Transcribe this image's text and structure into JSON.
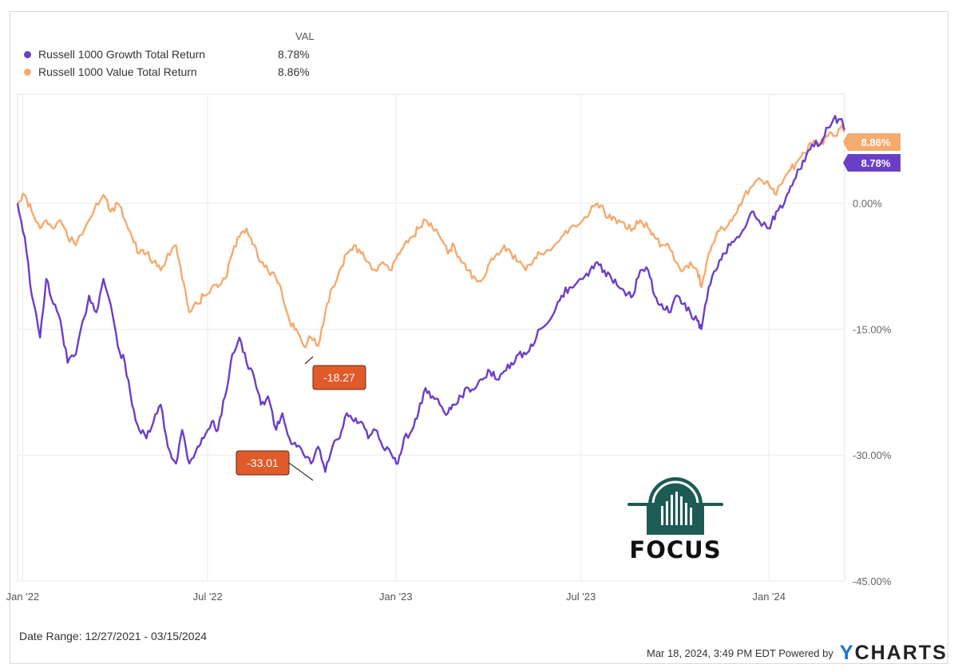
{
  "legend": {
    "header": "VAL",
    "items": [
      {
        "name": "Russell 1000 Growth Total Return",
        "value": "8.78%",
        "color": "#6a3fc8"
      },
      {
        "name": "Russell 1000 Value Total Return",
        "value": "8.86%",
        "color": "#f5aa6e"
      }
    ]
  },
  "chart_data": {
    "type": "line",
    "x_tick_labels": [
      "Jan '22",
      "Jul '22",
      "Jan '23",
      "Jul '23",
      "Jan '24"
    ],
    "y_tick_labels": [
      "0.00%",
      "-15.00%",
      "-30.00%",
      "-45.00%"
    ],
    "y_ticks": [
      0,
      -15,
      -30,
      -45
    ],
    "ylim": [
      -45,
      13
    ],
    "x_range": [
      "2021-12-27",
      "2024-03-15"
    ],
    "grid": true,
    "series": [
      {
        "name": "Russell 1000 Growth Total Return",
        "color": "#6a3fc8",
        "end_label": "8.78%",
        "x": [
          "2021-12-27",
          "2022-01-03",
          "2022-01-10",
          "2022-01-18",
          "2022-01-24",
          "2022-01-31",
          "2022-02-07",
          "2022-02-14",
          "2022-02-22",
          "2022-03-07",
          "2022-03-14",
          "2022-03-21",
          "2022-03-28",
          "2022-04-04",
          "2022-04-11",
          "2022-04-18",
          "2022-04-25",
          "2022-05-02",
          "2022-05-09",
          "2022-05-16",
          "2022-05-23",
          "2022-05-31",
          "2022-06-06",
          "2022-06-13",
          "2022-06-21",
          "2022-06-27",
          "2022-07-05",
          "2022-07-11",
          "2022-07-18",
          "2022-07-25",
          "2022-08-01",
          "2022-08-08",
          "2022-08-16",
          "2022-08-22",
          "2022-08-29",
          "2022-09-06",
          "2022-09-12",
          "2022-09-19",
          "2022-09-26",
          "2022-10-03",
          "2022-10-10",
          "2022-10-17",
          "2022-10-24",
          "2022-10-31",
          "2022-11-07",
          "2022-11-14",
          "2022-11-21",
          "2022-11-28",
          "2022-12-05",
          "2022-12-12",
          "2022-12-19",
          "2022-12-28",
          "2023-01-03",
          "2023-01-09",
          "2023-01-17",
          "2023-01-23",
          "2023-01-30",
          "2023-02-06",
          "2023-02-13",
          "2023-02-21",
          "2023-02-27",
          "2023-03-06",
          "2023-03-13",
          "2023-03-20",
          "2023-03-27",
          "2023-04-03",
          "2023-04-10",
          "2023-04-17",
          "2023-04-24",
          "2023-05-01",
          "2023-05-08",
          "2023-05-15",
          "2023-05-22",
          "2023-06-05",
          "2023-06-12",
          "2023-06-20",
          "2023-07-03",
          "2023-07-10",
          "2023-07-17",
          "2023-07-24",
          "2023-07-31",
          "2023-08-07",
          "2023-08-14",
          "2023-08-21",
          "2023-08-28",
          "2023-09-05",
          "2023-09-11",
          "2023-09-18",
          "2023-09-25",
          "2023-10-02",
          "2023-10-09",
          "2023-10-16",
          "2023-10-23",
          "2023-10-27",
          "2023-11-03",
          "2023-11-10",
          "2023-11-17",
          "2023-11-24",
          "2023-12-01",
          "2023-12-08",
          "2023-12-15",
          "2023-12-22",
          "2024-01-02",
          "2024-01-08",
          "2024-01-16",
          "2024-01-22",
          "2024-01-29",
          "2024-02-05",
          "2024-02-12",
          "2024-02-20",
          "2024-02-26",
          "2024-03-04",
          "2024-03-11",
          "2024-03-15"
        ],
        "y": [
          0,
          -4,
          -11,
          -16,
          -9,
          -12,
          -14,
          -19,
          -18,
          -11,
          -13,
          -9,
          -12,
          -17,
          -19,
          -24,
          -27,
          -28,
          -26,
          -24,
          -29,
          -31,
          -27,
          -31,
          -29,
          -28,
          -26,
          -27,
          -23,
          -18,
          -16,
          -19,
          -21,
          -24,
          -23,
          -27,
          -25,
          -28,
          -29,
          -30,
          -31,
          -29,
          -32,
          -29,
          -28,
          -25,
          -26,
          -26,
          -28,
          -27,
          -29,
          -30,
          -31,
          -28,
          -27,
          -25,
          -22,
          -23,
          -24,
          -25,
          -24,
          -23,
          -22,
          -22,
          -21,
          -20,
          -21,
          -20,
          -19,
          -18,
          -18,
          -17,
          -15,
          -13,
          -11,
          -10,
          -9,
          -8,
          -7,
          -8,
          -9,
          -10,
          -11,
          -11,
          -8,
          -8,
          -11,
          -12,
          -13,
          -11,
          -12,
          -13,
          -14,
          -15,
          -10,
          -8,
          -6,
          -5,
          -4,
          -3,
          -1,
          -2,
          -3,
          -1,
          0,
          2,
          4,
          5,
          7,
          7,
          9,
          10,
          10,
          8.78
        ]
      },
      {
        "name": "Russell 1000 Value Total Return",
        "color": "#f5aa6e",
        "end_label": "8.86%",
        "x": [
          "2021-12-27",
          "2022-01-03",
          "2022-01-10",
          "2022-01-18",
          "2022-01-24",
          "2022-01-31",
          "2022-02-07",
          "2022-02-14",
          "2022-02-22",
          "2022-03-07",
          "2022-03-14",
          "2022-03-21",
          "2022-03-28",
          "2022-04-04",
          "2022-04-11",
          "2022-04-18",
          "2022-04-25",
          "2022-05-02",
          "2022-05-09",
          "2022-05-16",
          "2022-05-23",
          "2022-05-31",
          "2022-06-06",
          "2022-06-13",
          "2022-06-21",
          "2022-06-27",
          "2022-07-05",
          "2022-07-11",
          "2022-07-18",
          "2022-07-25",
          "2022-08-01",
          "2022-08-08",
          "2022-08-16",
          "2022-08-22",
          "2022-08-29",
          "2022-09-06",
          "2022-09-12",
          "2022-09-19",
          "2022-09-26",
          "2022-10-03",
          "2022-10-10",
          "2022-10-17",
          "2022-10-24",
          "2022-10-31",
          "2022-11-07",
          "2022-11-14",
          "2022-11-21",
          "2022-11-28",
          "2022-12-05",
          "2022-12-12",
          "2022-12-19",
          "2022-12-28",
          "2023-01-03",
          "2023-01-09",
          "2023-01-17",
          "2023-01-23",
          "2023-01-30",
          "2023-02-06",
          "2023-02-13",
          "2023-02-21",
          "2023-02-27",
          "2023-03-06",
          "2023-03-13",
          "2023-03-20",
          "2023-03-27",
          "2023-04-03",
          "2023-04-10",
          "2023-04-17",
          "2023-04-24",
          "2023-05-01",
          "2023-05-08",
          "2023-05-15",
          "2023-05-22",
          "2023-06-05",
          "2023-06-12",
          "2023-06-20",
          "2023-07-03",
          "2023-07-10",
          "2023-07-17",
          "2023-07-24",
          "2023-07-31",
          "2023-08-07",
          "2023-08-14",
          "2023-08-21",
          "2023-08-28",
          "2023-09-05",
          "2023-09-11",
          "2023-09-18",
          "2023-09-25",
          "2023-10-02",
          "2023-10-09",
          "2023-10-16",
          "2023-10-23",
          "2023-10-27",
          "2023-11-03",
          "2023-11-10",
          "2023-11-17",
          "2023-11-24",
          "2023-12-01",
          "2023-12-08",
          "2023-12-15",
          "2023-12-22",
          "2024-01-02",
          "2024-01-08",
          "2024-01-16",
          "2024-01-22",
          "2024-01-29",
          "2024-02-05",
          "2024-02-12",
          "2024-02-20",
          "2024-02-26",
          "2024-03-04",
          "2024-03-11",
          "2024-03-15"
        ],
        "y": [
          0,
          1,
          -1,
          -3,
          -2,
          -3,
          -2,
          -4,
          -5,
          -2,
          0,
          1,
          -1,
          0,
          -2,
          -4,
          -6,
          -6,
          -7,
          -8,
          -6,
          -5,
          -9,
          -13,
          -12,
          -11,
          -10,
          -10,
          -9,
          -6,
          -4,
          -3,
          -5,
          -7,
          -8,
          -9,
          -11,
          -14,
          -15,
          -17,
          -16,
          -17,
          -13,
          -10,
          -8,
          -6,
          -5,
          -6,
          -7,
          -8,
          -7,
          -8,
          -6,
          -5,
          -4,
          -3,
          -2,
          -3,
          -4,
          -6,
          -5,
          -7,
          -8,
          -9,
          -9,
          -7,
          -6,
          -5,
          -6,
          -7,
          -8,
          -7,
          -6,
          -5,
          -4,
          -3,
          -2,
          -1,
          0,
          -1,
          -2,
          -2,
          -3,
          -3,
          -2,
          -3,
          -4,
          -5,
          -5,
          -7,
          -8,
          -7,
          -8,
          -10,
          -6,
          -4,
          -3,
          -2,
          -1,
          1,
          2,
          3,
          2,
          1,
          3,
          4,
          5,
          6,
          7,
          7,
          8,
          8,
          9,
          8.86
        ]
      }
    ],
    "callouts": [
      {
        "label": "-18.27",
        "x": "2022-10-12",
        "y": -18.27
      },
      {
        "label": "-33.01",
        "x": "2022-10-12",
        "y": -33.01
      }
    ]
  },
  "footer": {
    "date_range": "Date Range: 12/27/2021 - 03/15/2024",
    "timestamp": "Mar 18, 2024, 3:49 PM EDT Powered by",
    "brand_y": "Y",
    "brand_rest": "CHARTS"
  },
  "logo": {
    "text": "FOCUS",
    "color": "#1d5b55"
  }
}
